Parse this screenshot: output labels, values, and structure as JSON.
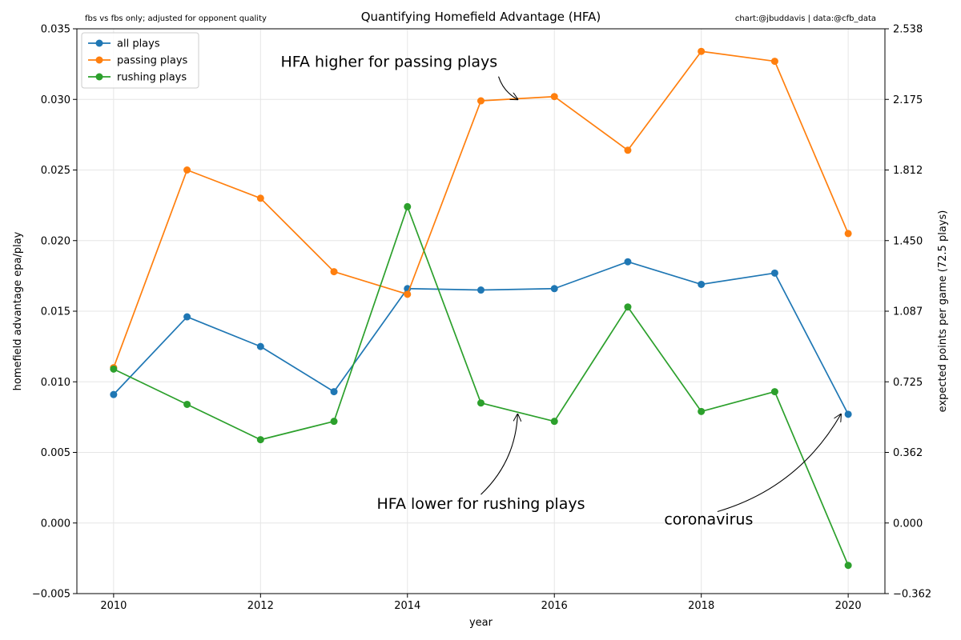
{
  "chart_data": {
    "type": "line",
    "title": "Quantifying Homefield Advantage (HFA)",
    "subtitle_left": "fbs vs fbs only; adjusted for opponent quality",
    "subtitle_right": "chart:@jbuddavis | data:@cfb_data",
    "xlabel": "year",
    "ylabel": "homefield advantage epa/play",
    "ylabel_right": "expected points per game (72.5 plays)",
    "x": [
      2010,
      2011,
      2012,
      2013,
      2014,
      2015,
      2016,
      2017,
      2018,
      2019,
      2020
    ],
    "xlim": [
      2009.5,
      2020.5
    ],
    "ylim": [
      -0.005,
      0.035
    ],
    "x_ticks": [
      "2010",
      "2012",
      "2014",
      "2016",
      "2018",
      "2020"
    ],
    "y_ticks": [
      "−0.005",
      "0.000",
      "0.005",
      "0.010",
      "0.015",
      "0.020",
      "0.025",
      "0.030",
      "0.035"
    ],
    "y_ticks_right": [
      "−0.362",
      "0.000",
      "0.362",
      "0.725",
      "1.087",
      "1.450",
      "1.812",
      "2.175",
      "2.538"
    ],
    "grid": true,
    "legend_position": "top-left",
    "series": [
      {
        "name": "all plays",
        "color": "#1f77b4",
        "values": [
          0.0091,
          0.0146,
          0.0125,
          0.0093,
          0.0166,
          0.0165,
          0.0166,
          0.0185,
          0.0169,
          0.0177,
          0.0077
        ]
      },
      {
        "name": "passing plays",
        "color": "#ff7f0e",
        "values": [
          0.011,
          0.025,
          0.023,
          0.0178,
          0.0162,
          0.0299,
          0.0302,
          0.0264,
          0.0334,
          0.0327,
          0.0205
        ]
      },
      {
        "name": "rushing plays",
        "color": "#2ca02c",
        "values": [
          0.0109,
          0.0084,
          0.0059,
          0.0072,
          0.0224,
          0.0085,
          0.0072,
          0.0153,
          0.0079,
          0.0093,
          -0.003
        ]
      }
    ],
    "annotations": [
      {
        "text": "HFA higher for passing plays",
        "x": 2013.75,
        "y": 0.0323,
        "target_x": 2015.5,
        "target_y": 0.03
      },
      {
        "text": "HFA lower for rushing plays",
        "x": 2015.0,
        "y": 0.001,
        "target_x": 2015.5,
        "target_y": 0.0077
      },
      {
        "text": "coronavirus",
        "x": 2018.1,
        "y": -0.0001,
        "target_x": 2019.9,
        "target_y": 0.0077
      }
    ]
  }
}
